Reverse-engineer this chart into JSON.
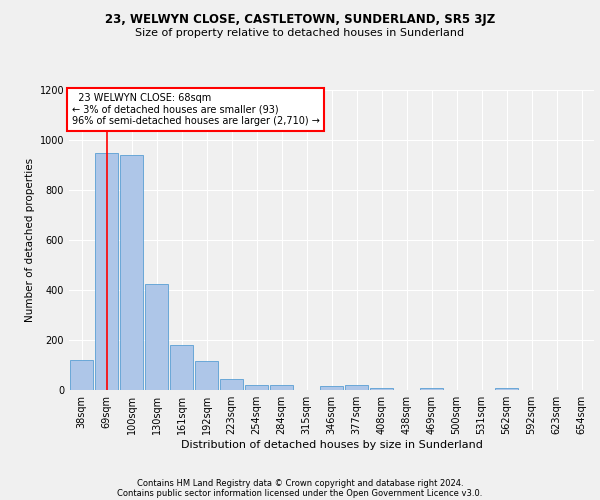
{
  "title1": "23, WELWYN CLOSE, CASTLETOWN, SUNDERLAND, SR5 3JZ",
  "title2": "Size of property relative to detached houses in Sunderland",
  "xlabel": "Distribution of detached houses by size in Sunderland",
  "ylabel": "Number of detached properties",
  "categories": [
    "38sqm",
    "69sqm",
    "100sqm",
    "130sqm",
    "161sqm",
    "192sqm",
    "223sqm",
    "254sqm",
    "284sqm",
    "315sqm",
    "346sqm",
    "377sqm",
    "408sqm",
    "438sqm",
    "469sqm",
    "500sqm",
    "531sqm",
    "562sqm",
    "592sqm",
    "623sqm",
    "654sqm"
  ],
  "values": [
    120,
    950,
    940,
    425,
    182,
    115,
    45,
    20,
    20,
    0,
    18,
    20,
    10,
    0,
    8,
    0,
    0,
    8,
    0,
    0,
    0
  ],
  "bar_color": "#aec6e8",
  "bar_edge_color": "#5a9fd4",
  "ylim": [
    0,
    1200
  ],
  "yticks": [
    0,
    200,
    400,
    600,
    800,
    1000,
    1200
  ],
  "red_line_index": 1,
  "annotation_text": "  23 WELWYN CLOSE: 68sqm\n← 3% of detached houses are smaller (93)\n96% of semi-detached houses are larger (2,710) →",
  "footer1": "Contains HM Land Registry data © Crown copyright and database right 2024.",
  "footer2": "Contains public sector information licensed under the Open Government Licence v3.0.",
  "background_color": "#f0f0f0",
  "title1_fontsize": 8.5,
  "title2_fontsize": 8.0,
  "xlabel_fontsize": 8.0,
  "ylabel_fontsize": 7.5,
  "tick_fontsize": 7.0,
  "ann_fontsize": 7.0,
  "footer_fontsize": 6.0
}
